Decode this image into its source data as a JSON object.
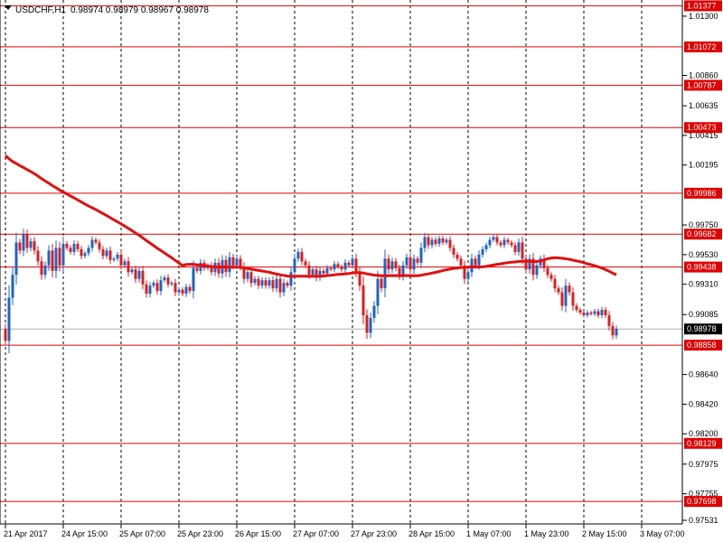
{
  "header": {
    "symbol_timeframe": "USDCHF,H1",
    "ohlc": "0.98974 0.98979 0.98967 0.98978"
  },
  "colors": {
    "bull": "#1e64c8",
    "bear": "#dc1e1e",
    "ma": "#e01010",
    "level_line": "#e00000",
    "grid": "#000000",
    "current_price_bg": "#000000"
  },
  "chart_data": {
    "type": "candlestick",
    "symbol": "USDCHF",
    "timeframe": "H1",
    "ylim": [
      0.97531,
      1.0142
    ],
    "y_ticks": [
      "1.01300",
      "1.00860",
      "1.00635",
      "1.00415",
      "1.00195",
      "0.99750",
      "0.99530",
      "0.99310",
      "0.99085",
      "0.98640",
      "0.98420",
      "0.98200",
      "0.97975",
      "0.97755",
      "0.97531"
    ],
    "x_ticks": [
      "21 Apr 2017",
      "24 Apr 15:00",
      "25 Apr 07:00",
      "25 Apr 23:00",
      "26 Apr 15:00",
      "27 Apr 07:00",
      "27 Apr 23:00",
      "28 Apr 15:00",
      "1 May 07:00",
      "1 May 23:00",
      "2 May 15:00",
      "3 May 07:00"
    ],
    "x_tick_index": [
      0,
      16,
      32,
      48,
      64,
      80,
      96,
      112,
      128,
      144,
      160,
      176
    ],
    "levels": [
      "1.01377",
      "1.01072",
      "1.00787",
      "1.00473",
      "0.99986",
      "0.99682",
      "0.99438",
      "0.98858",
      "0.98129",
      "0.97698"
    ],
    "current_price": "0.98978",
    "closes": [
      0.9889,
      0.9921,
      0.9938,
      0.9962,
      0.9956,
      0.9968,
      0.9958,
      0.9963,
      0.9956,
      0.9948,
      0.9938,
      0.9945,
      0.9956,
      0.9941,
      0.9958,
      0.9945,
      0.9961,
      0.9958,
      0.9955,
      0.9961,
      0.9957,
      0.9952,
      0.9954,
      0.9958,
      0.9964,
      0.9962,
      0.9957,
      0.9952,
      0.9956,
      0.9949,
      0.995,
      0.9953,
      0.9945,
      0.9948,
      0.994,
      0.9942,
      0.9935,
      0.9941,
      0.9931,
      0.9924,
      0.993,
      0.9932,
      0.9926,
      0.9934,
      0.9936,
      0.9931,
      0.9932,
      0.9925,
      0.9927,
      0.9924,
      0.9929,
      0.9926,
      0.9943,
      0.9941,
      0.9947,
      0.9943,
      0.9945,
      0.994,
      0.9947,
      0.9939,
      0.9949,
      0.994,
      0.9951,
      0.9945,
      0.995,
      0.9944,
      0.9935,
      0.994,
      0.9932,
      0.9935,
      0.993,
      0.9934,
      0.993,
      0.9934,
      0.9928,
      0.9935,
      0.9925,
      0.9932,
      0.993,
      0.994,
      0.995,
      0.9955,
      0.9948,
      0.9945,
      0.9938,
      0.9942,
      0.9936,
      0.9941,
      0.9939,
      0.9943,
      0.9942,
      0.9946,
      0.9944,
      0.9942,
      0.9947,
      0.9945,
      0.995,
      0.994,
      0.993,
      0.9908,
      0.9895,
      0.9906,
      0.9915,
      0.9935,
      0.9928,
      0.995,
      0.9942,
      0.9948,
      0.9943,
      0.9937,
      0.9945,
      0.9951,
      0.9942,
      0.995,
      0.9947,
      0.9958,
      0.9966,
      0.996,
      0.9964,
      0.9961,
      0.9965,
      0.9962,
      0.9964,
      0.9958,
      0.9953,
      0.995,
      0.9945,
      0.9935,
      0.994,
      0.995,
      0.9945,
      0.9953,
      0.9957,
      0.996,
      0.9964,
      0.9966,
      0.9962,
      0.996,
      0.9964,
      0.9962,
      0.996,
      0.9955,
      0.9962,
      0.995,
      0.9942,
      0.995,
      0.9938,
      0.9945,
      0.995,
      0.9943,
      0.9938,
      0.9935,
      0.9928,
      0.9925,
      0.9915,
      0.993,
      0.9925,
      0.9915,
      0.9912,
      0.991,
      0.9908,
      0.991,
      0.9909,
      0.9911,
      0.9908,
      0.9912,
      0.9908,
      0.99,
      0.9893,
      0.9898
    ]
  }
}
